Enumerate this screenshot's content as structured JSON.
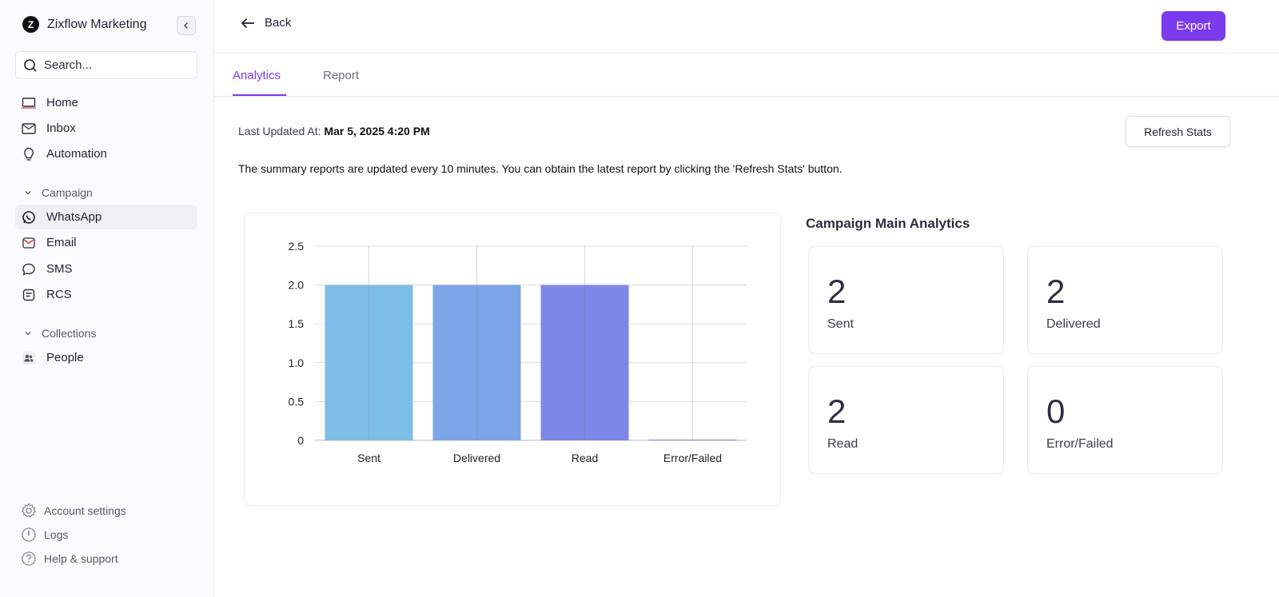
{
  "brand": {
    "name": "Zixflow Marketing",
    "logo_letter": "Z"
  },
  "search": {
    "placeholder": "Search..."
  },
  "nav": {
    "top_items": [
      {
        "label": "Home",
        "icon": "laptop-icon"
      },
      {
        "label": "Inbox",
        "icon": "mail-icon"
      },
      {
        "label": "Automation",
        "icon": "lightbulb-icon"
      }
    ],
    "campaign_section": "Campaign",
    "campaign_items": [
      {
        "label": "WhatsApp",
        "icon": "whatsapp-icon",
        "active": true
      },
      {
        "label": "Email",
        "icon": "email-icon"
      },
      {
        "label": "SMS",
        "icon": "chat-bubble-icon"
      },
      {
        "label": "RCS",
        "icon": "message-square-icon"
      }
    ],
    "collections_section": "Collections",
    "collections_items": [
      {
        "label": "People",
        "icon": "people-icon"
      }
    ],
    "bottom_items": [
      {
        "label": "Account settings",
        "icon": "gear-icon"
      },
      {
        "label": "Logs",
        "icon": "clock-icon"
      },
      {
        "label": "Help & support",
        "icon": "help-icon"
      }
    ]
  },
  "header": {
    "back_label": "Back",
    "export_label": "Export"
  },
  "tabs": [
    {
      "label": "Analytics",
      "active": true
    },
    {
      "label": "Report",
      "active": false
    }
  ],
  "status": {
    "last_updated_label": "Last Updated At:",
    "last_updated_value": "Mar 5, 2025 4:20 PM",
    "refresh_label": "Refresh Stats",
    "note": "The summary reports are updated every 10 minutes. You can obtain the latest report by clicking the 'Refresh Stats' button."
  },
  "analytics": {
    "title": "Campaign Main Analytics",
    "stats": [
      {
        "value": "2",
        "label": "Sent"
      },
      {
        "value": "2",
        "label": "Delivered"
      },
      {
        "value": "2",
        "label": "Read"
      },
      {
        "value": "0",
        "label": "Error/Failed"
      }
    ]
  },
  "colors": {
    "accent": "#7c3aed",
    "bar_sent": "#7dbde6",
    "bar_delivered": "#7ba5e6",
    "bar_read": "#7f87e6",
    "bar_failed": "#8890e8"
  },
  "chart_data": {
    "type": "bar",
    "categories": [
      "Sent",
      "Delivered",
      "Read",
      "Error/Failed"
    ],
    "values": [
      2,
      2,
      2,
      0
    ],
    "ylim": [
      0,
      2.5
    ],
    "yticks": [
      "0",
      "0.5",
      "1.0",
      "1.5",
      "2.0",
      "2.5"
    ],
    "grid": true,
    "title": "",
    "xlabel": "",
    "ylabel": ""
  }
}
